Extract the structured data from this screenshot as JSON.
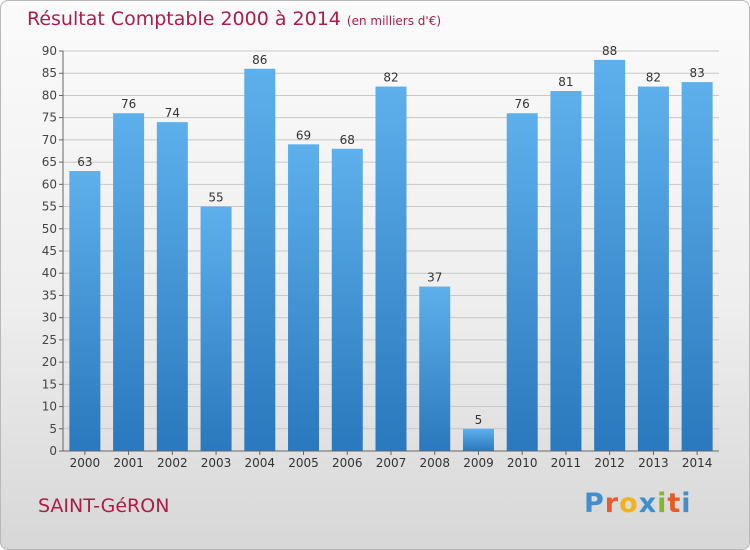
{
  "title": "Résultat Comptable 2000 à 2014",
  "subtitle": "(en milliers d'€)",
  "commune": "SAINT-GéRON",
  "logo": {
    "text": "Proxiti",
    "letters": [
      "P",
      "r",
      "o",
      "x",
      "i",
      "t",
      "i"
    ],
    "colors": [
      "#3f8fd0",
      "#e85a2a",
      "#f0b41a",
      "#3f8fd0",
      "#80b82a",
      "#e85a2a",
      "#3f8fd0"
    ]
  },
  "colors": {
    "bar": "#4a9fe0",
    "title": "#b01c48",
    "grid": "#c8c8c8"
  },
  "chart_data": {
    "type": "bar",
    "categories": [
      "2000",
      "2001",
      "2002",
      "2003",
      "2004",
      "2005",
      "2006",
      "2007",
      "2008",
      "2009",
      "2010",
      "2011",
      "2012",
      "2013",
      "2014"
    ],
    "values": [
      63,
      76,
      74,
      55,
      86,
      69,
      68,
      82,
      37,
      5,
      76,
      81,
      88,
      82,
      83
    ],
    "title": "Résultat Comptable 2000 à 2014",
    "subtitle": "(en milliers d'€)",
    "ylim": [
      0,
      90
    ],
    "yticks": [
      0,
      5,
      10,
      15,
      20,
      25,
      30,
      35,
      40,
      45,
      50,
      55,
      60,
      65,
      70,
      75,
      80,
      85,
      90
    ],
    "grid": true,
    "data_labels": true
  }
}
